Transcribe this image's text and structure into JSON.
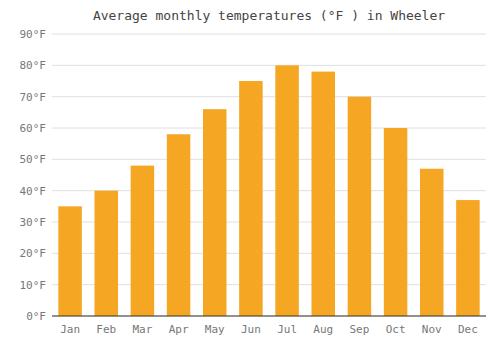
{
  "chart_data": {
    "type": "bar",
    "title": "Average monthly temperatures (°F ) in Wheeler",
    "categories": [
      "Jan",
      "Feb",
      "Mar",
      "Apr",
      "May",
      "Jun",
      "Jul",
      "Aug",
      "Sep",
      "Oct",
      "Nov",
      "Dec"
    ],
    "values": [
      35,
      40,
      48,
      58,
      66,
      75,
      80,
      78,
      70,
      60,
      47,
      37
    ],
    "color": "#F5A623",
    "ylim": [
      0,
      90
    ],
    "yticks": [
      {
        "value": 0,
        "label": "0°F"
      },
      {
        "value": 10,
        "label": "10°F"
      },
      {
        "value": 20,
        "label": "20°F"
      },
      {
        "value": 30,
        "label": "30°F"
      },
      {
        "value": 40,
        "label": "40°F"
      },
      {
        "value": 50,
        "label": "50°F"
      },
      {
        "value": 60,
        "label": "60°F"
      },
      {
        "value": 70,
        "label": "70°F"
      },
      {
        "value": 80,
        "label": "80°F"
      },
      {
        "value": 90,
        "label": "90°F"
      }
    ],
    "grid": true
  }
}
